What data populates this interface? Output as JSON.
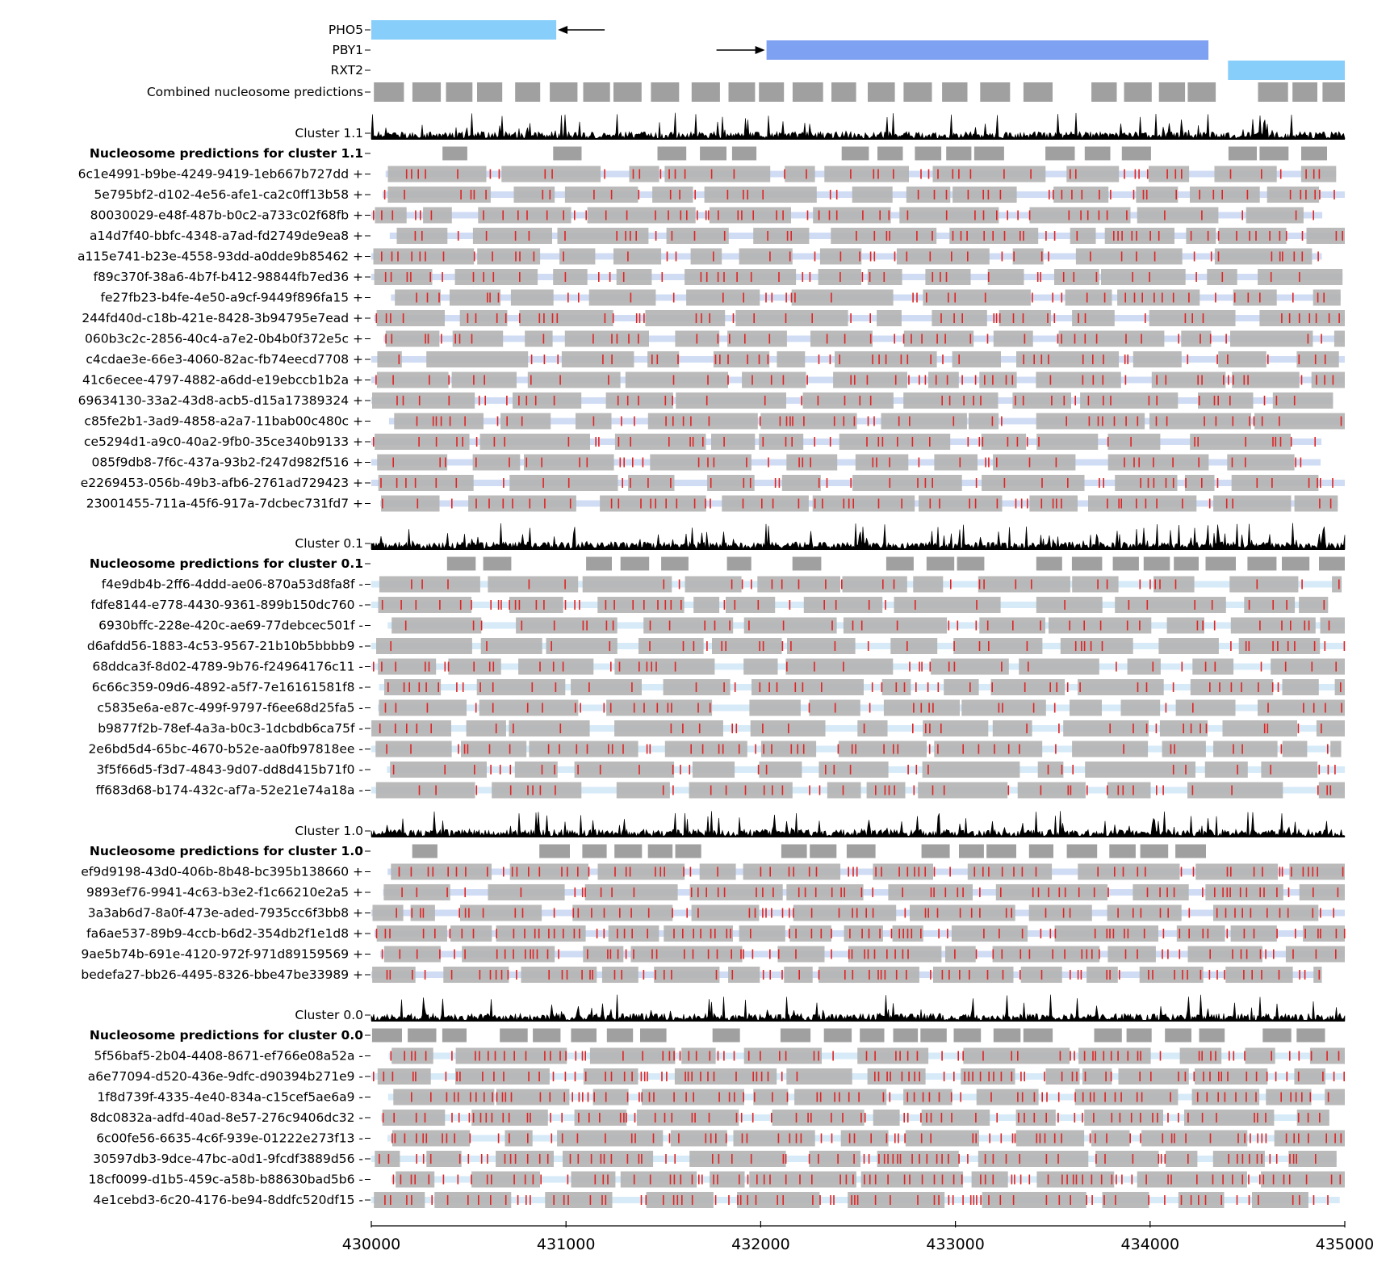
{
  "chart_data": {
    "type": "genome-track",
    "xlim": [
      430000,
      435000
    ],
    "xticks": [
      "430000",
      "431000",
      "432000",
      "433000",
      "434000",
      "435000"
    ],
    "genes": [
      {
        "name": "PHO5",
        "start": 430000,
        "end": 430950,
        "strand": "-",
        "color": "#87cefa"
      },
      {
        "name": "PBY1",
        "start": 432030,
        "end": 434300,
        "strand": "+",
        "color": "#7fa1f2"
      },
      {
        "name": "RXT2",
        "start": 434400,
        "end": 435000,
        "strand": "+",
        "color": "#87cefa"
      }
    ],
    "combined_label": "Combined nucleosome predictions",
    "colors": {
      "nucleosome": "#a0a0a0",
      "read_nucleosome": "#b2b2b2",
      "read_bg_plus": "#d0dcf4",
      "read_bg_minus": "#d6eaf8",
      "methylation": "#e02424",
      "coverage": "#000000",
      "gene_plus": "#7fa1f2",
      "gene_minus": "#87cefa"
    },
    "clusters": [
      {
        "label": "Cluster 1.1",
        "nuc_label": "Nucleosome predictions for cluster 1.1",
        "reads": [
          "6c1e4991-b9be-4249-9419-1eb667b727dd +",
          "5e795bf2-d102-4e56-afe1-ca2c0ff13b58 +",
          "80030029-e48f-487b-b0c2-a733c02f68fb +",
          "a14d7f40-bbfc-4348-a7ad-fd2749de9ea8 +",
          "a115e741-b23e-4558-93dd-a0dde9b85462 +",
          "f89c370f-38a6-4b7f-b412-98844fb7ed36 +",
          "fe27fb23-b4fe-4e50-a9cf-9449f896fa15 +",
          "244fd40d-c18b-421e-8428-3b94795e7ead +",
          "060b3c2c-2856-40c4-a7e2-0b4b0f372e5c +",
          "c4cdae3e-66e3-4060-82ac-fb74eecd7708 +",
          "41c6ecee-4797-4882-a6dd-e19ebccb1b2a +",
          "69634130-33a2-43d8-acb5-d15a17389324 +",
          "c85fe2b1-3ad9-4858-a2a7-11bab00c480c +",
          "ce5294d1-a9c0-40a2-9fb0-35ce340b9133 +",
          "085f9db8-7f6c-437a-93b2-f247d982f516 +",
          "e2269453-056b-49b3-afb6-2761ad729423 +",
          "23001455-711a-45f6-917a-7dcbec731fd7 +"
        ]
      },
      {
        "label": "Cluster 0.1",
        "nuc_label": "Nucleosome predictions for cluster 0.1",
        "reads": [
          "f4e9db4b-2ff6-4ddd-ae06-870a53d8fa8f -",
          "fdfe8144-e778-4430-9361-899b150dc760 -",
          "6930bffc-228e-420c-ae69-77debcec501f -",
          "d6afdd56-1883-4c53-9567-21b10b5bbbb9 -",
          "68ddca3f-8d02-4789-9b76-f24964176c11 -",
          "6c66c359-09d6-4892-a5f7-7e16161581f8 -",
          "c5835e6a-e87c-499f-9797-f6ee68d25fa5 -",
          "b9877f2b-78ef-4a3a-b0c3-1dcbdb6ca75f -",
          "2e6bd5d4-65bc-4670-b52e-aa0fb97818ee -",
          "3f5f66d5-f3d7-4843-9d07-dd8d415b71f0 -",
          "ff683d68-b174-432c-af7a-52e21e74a18a -"
        ]
      },
      {
        "label": "Cluster 1.0",
        "nuc_label": "Nucleosome predictions for cluster 1.0",
        "reads": [
          "ef9d9198-43d0-406b-8b48-bc395b138660 +",
          "9893ef76-9941-4c63-b3e2-f1c66210e2a5 +",
          "3a3ab6d7-8a0f-473e-aded-7935cc6f3bb8 +",
          "fa6ae537-89b9-4ccb-b6d2-354db2f1e1d8 +",
          "9ae5b74b-691e-4120-972f-971d89159569 +",
          "bedefa27-bb26-4495-8326-bbe47be33989 +"
        ]
      },
      {
        "label": "Cluster 0.0",
        "nuc_label": "Nucleosome predictions for cluster 0.0",
        "reads": [
          "5f56baf5-2b04-4408-8671-ef766e08a52a -",
          "a6e77094-d520-436e-9dfc-d90394b271e9 -",
          "1f8d739f-4335-4e40-834a-c15cef5ae6a9 -",
          "8dc0832a-adfd-40ad-8e57-276c9406dc32 -",
          "6c00fe56-6635-4c6f-939e-01222e273f13 -",
          "30597db3-9dce-47bc-a0d1-9fcdf3889d56 -",
          "18cf0099-d1b5-459c-a58b-b88630bad5b6 -",
          "4e1cebd3-6c20-4176-be94-8ddfc520df15 -"
        ]
      }
    ]
  }
}
